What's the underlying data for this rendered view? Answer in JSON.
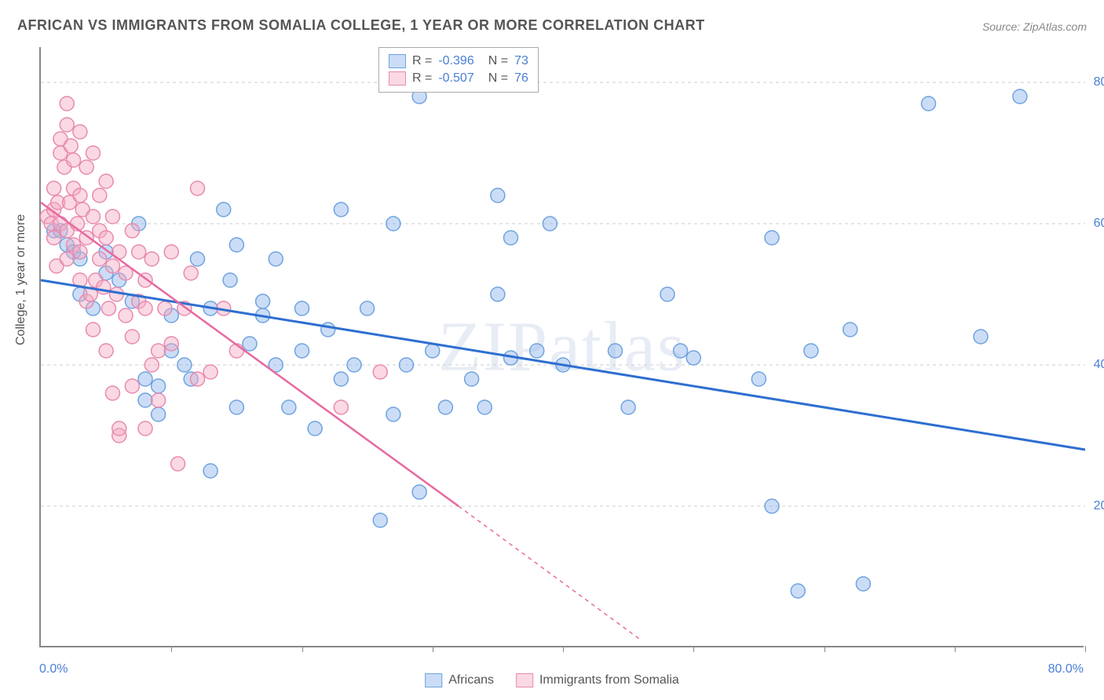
{
  "title": "AFRICAN VS IMMIGRANTS FROM SOMALIA COLLEGE, 1 YEAR OR MORE CORRELATION CHART",
  "source": "Source: ZipAtlas.com",
  "watermark": "ZIPatlas",
  "y_axis_title": "College, 1 year or more",
  "chart": {
    "type": "scatter",
    "xlim": [
      0,
      80
    ],
    "ylim": [
      0,
      85
    ],
    "x_tick_label_min": "0.0%",
    "x_tick_label_max": "80.0%",
    "y_ticks": [
      20,
      40,
      60,
      80
    ],
    "y_tick_labels": [
      "20.0%",
      "40.0%",
      "60.0%",
      "80.0%"
    ],
    "x_ticks_minor": [
      10,
      20,
      30,
      40,
      50,
      60,
      70,
      80
    ],
    "grid_color": "#cccccc",
    "axis_color": "#888888",
    "background_color": "#ffffff",
    "marker_radius": 9,
    "marker_stroke_width": 1.5,
    "series": [
      {
        "name": "Africans",
        "fill": "rgba(140,180,235,0.45)",
        "stroke": "#6fa3e0",
        "trend_color": "#2e6fd0",
        "trend_width": 3,
        "r": -0.396,
        "n": 73,
        "trend": {
          "x1": 0,
          "y1": 52,
          "x2": 80,
          "y2": 28
        },
        "points": [
          [
            1,
            59
          ],
          [
            1.5,
            59
          ],
          [
            2,
            57
          ],
          [
            2.5,
            56
          ],
          [
            3,
            50
          ],
          [
            3,
            55
          ],
          [
            4,
            48
          ],
          [
            5,
            53
          ],
          [
            5,
            56
          ],
          [
            6,
            52
          ],
          [
            7,
            49
          ],
          [
            7.5,
            60
          ],
          [
            8,
            35
          ],
          [
            8,
            38
          ],
          [
            9,
            37
          ],
          [
            9,
            33
          ],
          [
            10,
            42
          ],
          [
            10,
            47
          ],
          [
            11,
            40
          ],
          [
            11.5,
            38
          ],
          [
            12,
            55
          ],
          [
            13,
            48
          ],
          [
            13,
            25
          ],
          [
            14,
            62
          ],
          [
            14.5,
            52
          ],
          [
            15,
            34
          ],
          [
            15,
            57
          ],
          [
            16,
            43
          ],
          [
            17,
            47
          ],
          [
            17,
            49
          ],
          [
            18,
            40
          ],
          [
            18,
            55
          ],
          [
            19,
            34
          ],
          [
            20,
            42
          ],
          [
            20,
            48
          ],
          [
            21,
            31
          ],
          [
            22,
            45
          ],
          [
            23,
            38
          ],
          [
            23,
            62
          ],
          [
            24,
            40
          ],
          [
            25,
            48
          ],
          [
            26,
            18
          ],
          [
            27,
            33
          ],
          [
            27,
            60
          ],
          [
            28,
            40
          ],
          [
            29,
            22
          ],
          [
            29,
            78
          ],
          [
            30,
            42
          ],
          [
            31,
            34
          ],
          [
            33,
            38
          ],
          [
            34,
            34
          ],
          [
            35,
            50
          ],
          [
            35,
            64
          ],
          [
            36,
            58
          ],
          [
            36,
            41
          ],
          [
            38,
            42
          ],
          [
            39,
            60
          ],
          [
            40,
            40
          ],
          [
            44,
            42
          ],
          [
            45,
            34
          ],
          [
            48,
            50
          ],
          [
            49,
            42
          ],
          [
            50,
            41
          ],
          [
            55,
            38
          ],
          [
            56,
            58
          ],
          [
            56,
            20
          ],
          [
            58,
            8
          ],
          [
            59,
            42
          ],
          [
            62,
            45
          ],
          [
            63,
            9
          ],
          [
            68,
            77
          ],
          [
            72,
            44
          ],
          [
            75,
            78
          ]
        ]
      },
      {
        "name": "Immigrants from Somalia",
        "fill": "rgba(245,170,195,0.45)",
        "stroke": "#e98aae",
        "trend_color": "#e76aa0",
        "trend_width": 2.5,
        "r": -0.507,
        "n": 76,
        "trend": {
          "x1": 0,
          "y1": 63,
          "x2": 32,
          "y2": 20
        },
        "trend_dash_ext": {
          "x1": 32,
          "y1": 20,
          "x2": 46,
          "y2": 1
        },
        "points": [
          [
            0.5,
            61
          ],
          [
            0.8,
            60
          ],
          [
            1,
            62
          ],
          [
            1,
            58
          ],
          [
            1,
            65
          ],
          [
            1.2,
            54
          ],
          [
            1.3,
            63
          ],
          [
            1.5,
            70
          ],
          [
            1.5,
            72
          ],
          [
            1.5,
            60
          ],
          [
            1.8,
            68
          ],
          [
            2,
            77
          ],
          [
            2,
            74
          ],
          [
            2,
            55
          ],
          [
            2,
            59
          ],
          [
            2.2,
            63
          ],
          [
            2.3,
            71
          ],
          [
            2.5,
            57
          ],
          [
            2.5,
            65
          ],
          [
            2.5,
            69
          ],
          [
            2.8,
            60
          ],
          [
            3,
            52
          ],
          [
            3,
            56
          ],
          [
            3,
            64
          ],
          [
            3,
            73
          ],
          [
            3.2,
            62
          ],
          [
            3.5,
            49
          ],
          [
            3.5,
            68
          ],
          [
            3.5,
            58
          ],
          [
            3.8,
            50
          ],
          [
            4,
            61
          ],
          [
            4,
            45
          ],
          [
            4,
            70
          ],
          [
            4.2,
            52
          ],
          [
            4.5,
            55
          ],
          [
            4.5,
            59
          ],
          [
            4.5,
            64
          ],
          [
            4.8,
            51
          ],
          [
            5,
            42
          ],
          [
            5,
            58
          ],
          [
            5,
            66
          ],
          [
            5.2,
            48
          ],
          [
            5.5,
            54
          ],
          [
            5.5,
            36
          ],
          [
            5.5,
            61
          ],
          [
            5.8,
            50
          ],
          [
            6,
            30
          ],
          [
            6,
            31
          ],
          [
            6,
            56
          ],
          [
            6.5,
            47
          ],
          [
            6.5,
            53
          ],
          [
            7,
            37
          ],
          [
            7,
            44
          ],
          [
            7,
            59
          ],
          [
            7.5,
            49
          ],
          [
            7.5,
            56
          ],
          [
            8,
            31
          ],
          [
            8,
            48
          ],
          [
            8,
            52
          ],
          [
            8.5,
            40
          ],
          [
            8.5,
            55
          ],
          [
            9,
            42
          ],
          [
            9,
            35
          ],
          [
            9.5,
            48
          ],
          [
            10,
            56
          ],
          [
            10,
            43
          ],
          [
            10.5,
            26
          ],
          [
            11,
            48
          ],
          [
            11.5,
            53
          ],
          [
            12,
            38
          ],
          [
            12,
            65
          ],
          [
            13,
            39
          ],
          [
            14,
            48
          ],
          [
            15,
            42
          ],
          [
            23,
            34
          ],
          [
            26,
            39
          ]
        ]
      }
    ]
  },
  "legend": {
    "series1_label": "Africans",
    "series2_label": "Immigrants from Somalia"
  }
}
